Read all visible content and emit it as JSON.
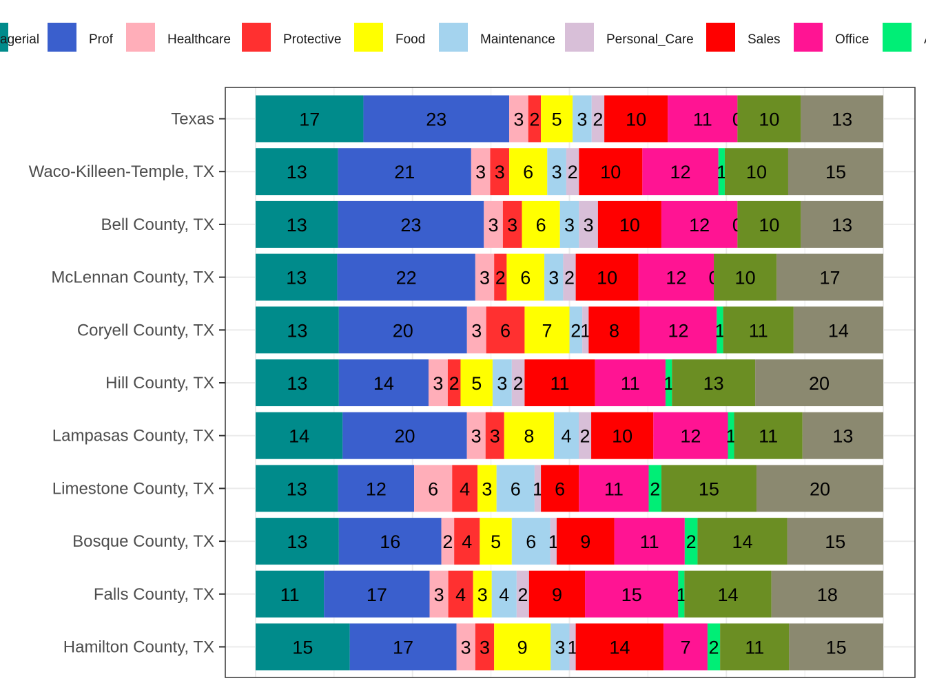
{
  "chart_data": {
    "type": "bar",
    "orientation": "horizontal",
    "stacked": true,
    "normalized": true,
    "legend_position": "top",
    "grid": true,
    "categories": [
      "Texas",
      "Waco-Killeen-Temple, TX",
      "Bell County, TX",
      "McLennan County, TX",
      "Coryell County, TX",
      "Hill County, TX",
      "Lampasas County, TX",
      "Limestone County, TX",
      "Bosque County, TX",
      "Falls County, TX",
      "Hamilton County, TX"
    ],
    "series": [
      {
        "color": "#008B8B",
        "values": [
          17,
          13,
          13,
          13,
          13,
          13,
          14,
          13,
          13,
          11,
          15
        ]
      },
      {
        "name": "Prof",
        "color": "#3A5FCD",
        "values": [
          23,
          21,
          23,
          22,
          20,
          14,
          20,
          12,
          16,
          17,
          17
        ]
      },
      {
        "name": "Healthcare",
        "color": "#FFAEB9",
        "values": [
          3,
          3,
          3,
          3,
          3,
          3,
          3,
          6,
          2,
          3,
          3
        ]
      },
      {
        "name": "Protective",
        "color": "#FF3030",
        "values": [
          2,
          3,
          3,
          2,
          6,
          2,
          3,
          4,
          4,
          4,
          3
        ]
      },
      {
        "name": "Food",
        "color": "#FFFF00",
        "values": [
          5,
          6,
          6,
          6,
          7,
          5,
          8,
          3,
          5,
          3,
          9
        ]
      },
      {
        "name": "Maintenance",
        "color": "#A4D3EE",
        "values": [
          3,
          3,
          3,
          3,
          2,
          3,
          4,
          6,
          6,
          4,
          3
        ]
      },
      {
        "name": "Personal_Care",
        "color": "#D8BFD8",
        "values": [
          2,
          2,
          3,
          2,
          1,
          2,
          2,
          1,
          1,
          2,
          1
        ]
      },
      {
        "name": "Sales",
        "color": "#FF0000",
        "values": [
          10,
          10,
          10,
          10,
          8,
          11,
          10,
          6,
          9,
          9,
          14
        ]
      },
      {
        "name": "Office",
        "color": "#FF1493",
        "values": [
          11,
          12,
          12,
          12,
          12,
          11,
          12,
          11,
          11,
          15,
          7
        ]
      },
      {
        "color": "#00EE76",
        "values": [
          0,
          1,
          0,
          0,
          1,
          1,
          1,
          2,
          2,
          1,
          2
        ]
      },
      {
        "color": "#6B8E23",
        "values": [
          10,
          10,
          10,
          10,
          11,
          13,
          11,
          15,
          14,
          14,
          11
        ]
      },
      {
        "color": "#8B8970",
        "values": [
          13,
          15,
          13,
          17,
          14,
          20,
          13,
          20,
          15,
          18,
          15
        ]
      }
    ],
    "legend_entries": [
      {
        "label": "agerial",
        "color": "#008B8B"
      },
      {
        "label": "Prof",
        "color": "#3A5FCD"
      },
      {
        "label": "Healthcare",
        "color": "#FFAEB9"
      },
      {
        "label": "Protective",
        "color": "#FF3030"
      },
      {
        "label": "Food",
        "color": "#FFFF00"
      },
      {
        "label": "Maintenance",
        "color": "#A4D3EE"
      },
      {
        "label": "Personal_Care",
        "color": "#D8BFD8"
      },
      {
        "label": "Sales",
        "color": "#FF0000"
      },
      {
        "label": "Office",
        "color": "#FF1493"
      },
      {
        "label": "A",
        "color": "#00EE76"
      }
    ],
    "xlim": [
      0,
      100
    ],
    "xlabel": "",
    "ylabel": ""
  }
}
